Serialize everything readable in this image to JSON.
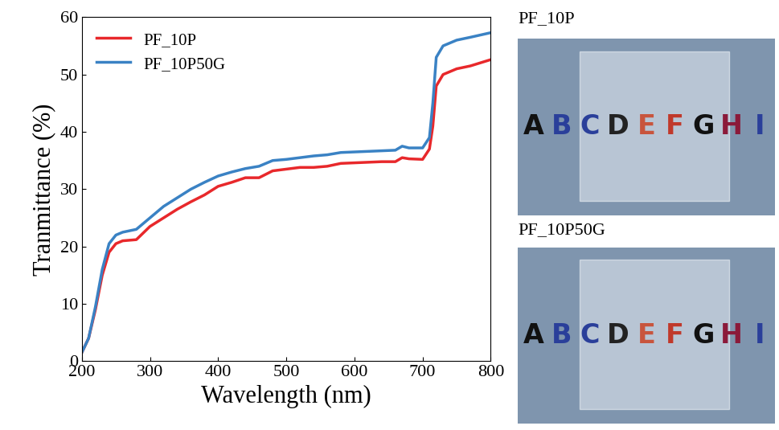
{
  "chart_data": {
    "type": "line",
    "x_label": "Wavelength (nm)",
    "y_label": "Tranmittance (%)",
    "x": [
      200,
      210,
      220,
      230,
      240,
      250,
      260,
      280,
      300,
      320,
      340,
      360,
      380,
      400,
      420,
      440,
      460,
      480,
      500,
      520,
      540,
      560,
      580,
      600,
      620,
      640,
      660,
      670,
      680,
      700,
      710,
      715,
      720,
      730,
      750,
      770,
      800
    ],
    "series": [
      {
        "name": "PF_10P",
        "color": "#e8282b",
        "values": [
          1.5,
          4,
          9,
          15,
          19,
          20.5,
          21,
          21.2,
          23.5,
          25,
          26.5,
          27.8,
          29,
          30.5,
          31.2,
          32,
          32,
          33.2,
          33.5,
          33.8,
          33.8,
          34,
          34.5,
          34.6,
          34.7,
          34.8,
          34.8,
          35.5,
          35.3,
          35.2,
          37,
          41,
          48,
          50,
          51,
          51.5,
          52.6
        ]
      },
      {
        "name": "PF_10P50G",
        "color": "#3a82c4",
        "values": [
          1.5,
          4,
          9.5,
          16,
          20.5,
          22,
          22.5,
          23,
          25,
          27,
          28.5,
          30,
          31.2,
          32.3,
          33,
          33.6,
          34,
          35,
          35.2,
          35.5,
          35.8,
          36,
          36.4,
          36.5,
          36.6,
          36.7,
          36.8,
          37.5,
          37.2,
          37.2,
          39,
          45,
          53,
          55,
          56,
          56.5,
          57.3
        ]
      }
    ],
    "xlim": [
      200,
      800
    ],
    "xticks": [
      200,
      300,
      400,
      500,
      600,
      700,
      800
    ],
    "ylim": [
      0,
      60
    ],
    "yticks": [
      0,
      10,
      20,
      30,
      40,
      50,
      60
    ],
    "legend": "upper left",
    "grid": false
  },
  "panels": [
    {
      "label": "PF_10P",
      "text": "ABCDEFGHI"
    },
    {
      "label": "PF_10P50G",
      "text": "ABCDEFGHI"
    }
  ]
}
